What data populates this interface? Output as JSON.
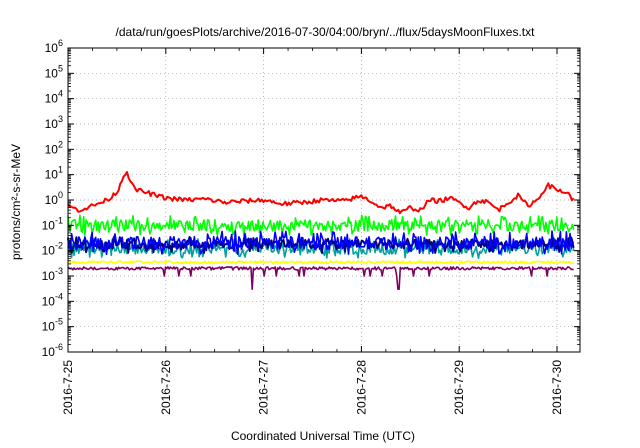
{
  "chart_data": {
    "type": "line",
    "title": "/data/run/goesPlots/archive/2016-07-30/04:00/bryn/../flux/5daysMoonFluxes.txt",
    "xlabel": "Coordinated Universal Time (UTC)",
    "ylabel": "protons/cm²-s-sr-MeV",
    "yscale": "log",
    "ylim": [
      1e-06,
      1000000.0
    ],
    "ytick_exponents": [
      -6,
      -5,
      -4,
      -3,
      -2,
      -1,
      0,
      1,
      2,
      3,
      4,
      5,
      6
    ],
    "ytick_base": "10",
    "xlim": [
      "2016-07-25",
      "2016-07-30 04:00"
    ],
    "xticks": [
      "2016-7-25",
      "2016-7-26",
      "2016-7-27",
      "2016-7-28",
      "2016-7-29",
      "2016-7-30"
    ],
    "grid": true,
    "legend": "none",
    "series": [
      {
        "color": "#ff0000",
        "x_days": [
          0.0,
          0.1,
          0.2,
          0.3,
          0.4,
          0.5,
          0.55,
          0.6,
          0.65,
          0.7,
          0.8,
          0.9,
          1.0,
          1.2,
          1.4,
          1.6,
          1.8,
          2.0,
          2.2,
          2.4,
          2.6,
          2.8,
          3.0,
          3.1,
          3.2,
          3.3,
          3.4,
          3.5,
          3.6,
          3.7,
          3.8,
          3.9,
          4.0,
          4.1,
          4.2,
          4.3,
          4.4,
          4.5,
          4.6,
          4.7,
          4.8,
          4.9,
          5.0,
          5.1,
          5.17
        ],
        "values": [
          0.6,
          0.4,
          0.5,
          0.7,
          1.0,
          2.0,
          6.0,
          15.0,
          4.0,
          2.5,
          2.0,
          1.5,
          1.2,
          1.0,
          1.1,
          0.8,
          0.9,
          1.0,
          0.7,
          0.8,
          1.0,
          0.9,
          1.4,
          0.9,
          0.5,
          0.6,
          0.3,
          0.5,
          0.4,
          1.0,
          0.9,
          1.2,
          0.8,
          0.5,
          1.0,
          0.8,
          0.4,
          0.8,
          1.5,
          0.6,
          1.0,
          4.0,
          2.5,
          2.0,
          1.0
        ]
      },
      {
        "color": "#00ff00",
        "values_typical": 0.1,
        "values_min": 0.04,
        "values_max": 0.25
      },
      {
        "color": "#00a0a0",
        "values_typical": 0.012,
        "values_min": 0.005,
        "values_max": 0.03
      },
      {
        "color": "#0000ff",
        "values_typical": 0.02,
        "values_min": 0.007,
        "values_max": 0.06
      },
      {
        "color": "#000080",
        "values_typical": 0.018,
        "values_min": 0.008,
        "values_max": 0.035
      },
      {
        "color": "#ffff00",
        "values_typical": 0.0035,
        "values_min": 0.003,
        "values_max": 0.004
      },
      {
        "color": "#800060",
        "values_typical": 0.002,
        "values_min": 0.0003,
        "values_max": 0.0025
      }
    ]
  }
}
